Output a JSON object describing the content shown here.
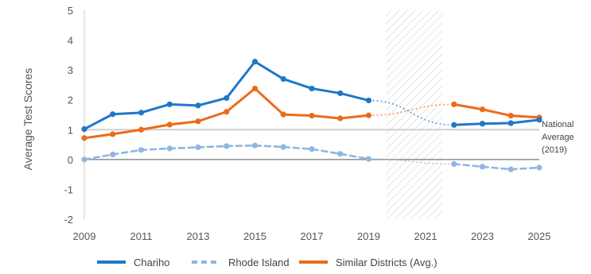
{
  "chart_data": {
    "type": "line",
    "ylabel": "Average Test Scores",
    "ylim": [
      -2,
      5
    ],
    "yticks": [
      5,
      4,
      3,
      2,
      1,
      0,
      -1,
      -2
    ],
    "xlim": [
      2009,
      2025
    ],
    "xticks": [
      2009,
      2011,
      2013,
      2015,
      2017,
      2019,
      2021,
      2023,
      2025
    ],
    "grid": false,
    "legend_position": "bottom",
    "shaded_period": [
      2019.6,
      2021.6
    ],
    "reference_line": {
      "y": 1,
      "label_lines": [
        "National",
        "Average",
        "(2019)"
      ]
    },
    "series": [
      {
        "name": "Chariho",
        "color": "#1f77c9",
        "style": "solid",
        "points": [
          [
            2009,
            1.02
          ],
          [
            2010,
            1.52
          ],
          [
            2011,
            1.57
          ],
          [
            2012,
            1.85
          ],
          [
            2013,
            1.81
          ],
          [
            2014,
            2.06
          ],
          [
            2015,
            3.28
          ],
          [
            2016,
            2.7
          ],
          [
            2017,
            2.38
          ],
          [
            2018,
            2.22
          ],
          [
            2019,
            1.98
          ],
          [
            2022,
            1.16
          ],
          [
            2023,
            1.2
          ],
          [
            2024,
            1.22
          ],
          [
            2025,
            1.33
          ]
        ]
      },
      {
        "name": "Rhode Island",
        "color": "#8fb6e1",
        "style": "dashed",
        "points": [
          [
            2009,
            0.0
          ],
          [
            2010,
            0.17
          ],
          [
            2011,
            0.32
          ],
          [
            2012,
            0.37
          ],
          [
            2013,
            0.41
          ],
          [
            2014,
            0.45
          ],
          [
            2015,
            0.47
          ],
          [
            2016,
            0.42
          ],
          [
            2017,
            0.35
          ],
          [
            2018,
            0.19
          ],
          [
            2019,
            0.02
          ],
          [
            2022,
            -0.15
          ],
          [
            2023,
            -0.24
          ],
          [
            2024,
            -0.33
          ],
          [
            2025,
            -0.27
          ]
        ]
      },
      {
        "name": "Similar Districts (Avg.)",
        "color": "#ec6b1a",
        "style": "solid",
        "points": [
          [
            2009,
            0.72
          ],
          [
            2010,
            0.85
          ],
          [
            2011,
            1.0
          ],
          [
            2012,
            1.17
          ],
          [
            2013,
            1.28
          ],
          [
            2014,
            1.6
          ],
          [
            2015,
            2.38
          ],
          [
            2016,
            1.51
          ],
          [
            2017,
            1.47
          ],
          [
            2018,
            1.38
          ],
          [
            2019,
            1.48
          ],
          [
            2022,
            1.85
          ],
          [
            2023,
            1.68
          ],
          [
            2024,
            1.47
          ],
          [
            2025,
            1.41
          ]
        ]
      }
    ]
  }
}
